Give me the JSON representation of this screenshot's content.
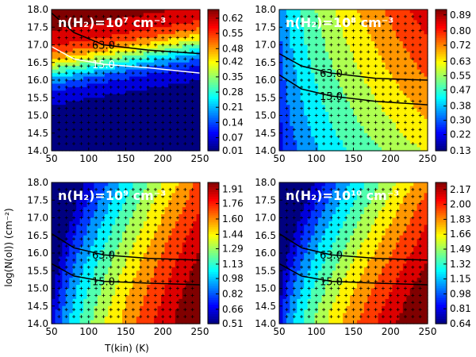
{
  "figure": {
    "ylabel": "log(N(ol)) (cm⁻²)",
    "xlabel": "T(kin) (K)"
  },
  "chart_data": [
    {
      "type": "heatmap",
      "title": "n(H₂)=10⁷ cm⁻³",
      "x": [
        50,
        100,
        150,
        200,
        250
      ],
      "y": [
        14.0,
        14.5,
        15.0,
        15.5,
        16.0,
        16.5,
        17.0,
        17.5,
        18.0
      ],
      "x_ticks": [
        "50",
        "100",
        "150",
        "200",
        "250"
      ],
      "y_ticks": [
        "14.0",
        "14.5",
        "15.0",
        "15.5",
        "16.0",
        "16.5",
        "17.0",
        "17.5",
        "18.0"
      ],
      "xlim": [
        50,
        250
      ],
      "ylim": [
        14.0,
        18.0
      ],
      "colorbar_ticks": [
        "0.01",
        "0.07",
        "0.14",
        "0.21",
        "0.28",
        "0.35",
        "0.42",
        "0.48",
        "0.55",
        "0.62"
      ],
      "colorbar_range": [
        0.01,
        0.66
      ],
      "contours": [
        {
          "label": "63.0",
          "color": "#000000",
          "points": [
            [
              50,
              17.9
            ],
            [
              80,
              17.35
            ],
            [
              120,
              17.0
            ],
            [
              180,
              16.85
            ],
            [
              250,
              16.75
            ]
          ]
        },
        {
          "label": "15.0",
          "color": "#ffffff",
          "points": [
            [
              50,
              16.95
            ],
            [
              80,
              16.6
            ],
            [
              120,
              16.45
            ],
            [
              180,
              16.35
            ],
            [
              250,
              16.2
            ]
          ]
        }
      ]
    },
    {
      "type": "heatmap",
      "title": "n(H₂)=10⁸ cm⁻³",
      "x": [
        50,
        100,
        150,
        200,
        250
      ],
      "y": [
        14.0,
        14.5,
        15.0,
        15.5,
        16.0,
        16.5,
        17.0,
        17.5,
        18.0
      ],
      "x_ticks": [
        "50",
        "100",
        "150",
        "200",
        "250"
      ],
      "y_ticks": [
        "14.0",
        "14.5",
        "15.0",
        "15.5",
        "16.0",
        "16.5",
        "17.0",
        "17.5",
        "18.0"
      ],
      "xlim": [
        50,
        250
      ],
      "ylim": [
        14.0,
        18.0
      ],
      "colorbar_ticks": [
        "0.13",
        "0.22",
        "0.30",
        "0.38",
        "0.47",
        "0.55",
        "0.63",
        "0.72",
        "0.80",
        "0.89"
      ],
      "colorbar_range": [
        0.13,
        0.92
      ],
      "contours": [
        {
          "label": "63.0",
          "color": "#000000",
          "points": [
            [
              50,
              16.75
            ],
            [
              80,
              16.4
            ],
            [
              120,
              16.2
            ],
            [
              180,
              16.05
            ],
            [
              250,
              16.0
            ]
          ]
        },
        {
          "label": "15.0",
          "color": "#000000",
          "points": [
            [
              50,
              16.15
            ],
            [
              80,
              15.75
            ],
            [
              120,
              15.55
            ],
            [
              180,
              15.4
            ],
            [
              250,
              15.3
            ]
          ]
        }
      ]
    },
    {
      "type": "heatmap",
      "title": "n(H₂)=10⁹ cm⁻³",
      "x": [
        50,
        100,
        150,
        200,
        250
      ],
      "y": [
        14.0,
        14.5,
        15.0,
        15.5,
        16.0,
        16.5,
        17.0,
        17.5,
        18.0
      ],
      "x_ticks": [
        "50",
        "100",
        "150",
        "200",
        "250"
      ],
      "y_ticks": [
        "14.0",
        "14.5",
        "15.0",
        "15.5",
        "16.0",
        "16.5",
        "17.0",
        "17.5",
        "18.0"
      ],
      "xlim": [
        50,
        250
      ],
      "ylim": [
        14.0,
        18.0
      ],
      "colorbar_ticks": [
        "0.51",
        "0.66",
        "0.82",
        "0.98",
        "1.13",
        "1.29",
        "1.44",
        "1.60",
        "1.76",
        "1.91"
      ],
      "colorbar_range": [
        0.51,
        1.98
      ],
      "contours": [
        {
          "label": "63.0",
          "color": "#000000",
          "points": [
            [
              50,
              16.55
            ],
            [
              80,
              16.15
            ],
            [
              120,
              15.95
            ],
            [
              180,
              15.85
            ],
            [
              250,
              15.8
            ]
          ]
        },
        {
          "label": "15.0",
          "color": "#000000",
          "points": [
            [
              50,
              15.7
            ],
            [
              80,
              15.35
            ],
            [
              120,
              15.2
            ],
            [
              180,
              15.15
            ],
            [
              250,
              15.1
            ]
          ]
        }
      ]
    },
    {
      "type": "heatmap",
      "title": "n(H₂)=10¹⁰ cm⁻³",
      "x": [
        50,
        100,
        150,
        200,
        250
      ],
      "y": [
        14.0,
        14.5,
        15.0,
        15.5,
        16.0,
        16.5,
        17.0,
        17.5,
        18.0
      ],
      "x_ticks": [
        "50",
        "100",
        "150",
        "200",
        "250"
      ],
      "y_ticks": [
        "14.0",
        "14.5",
        "15.0",
        "15.5",
        "16.0",
        "16.5",
        "17.0",
        "17.5",
        "18.0"
      ],
      "xlim": [
        50,
        250
      ],
      "ylim": [
        14.0,
        18.0
      ],
      "colorbar_ticks": [
        "0.64",
        "0.81",
        "0.98",
        "1.15",
        "1.32",
        "1.49",
        "1.66",
        "1.83",
        "2.00",
        "2.17"
      ],
      "colorbar_range": [
        0.64,
        2.25
      ],
      "contours": [
        {
          "label": "63.0",
          "color": "#000000",
          "points": [
            [
              50,
              16.55
            ],
            [
              80,
              16.15
            ],
            [
              120,
              15.95
            ],
            [
              180,
              15.85
            ],
            [
              250,
              15.8
            ]
          ]
        },
        {
          "label": "15.0",
          "color": "#000000",
          "points": [
            [
              50,
              15.7
            ],
            [
              80,
              15.35
            ],
            [
              120,
              15.2
            ],
            [
              180,
              15.15
            ],
            [
              250,
              15.1
            ]
          ]
        }
      ]
    }
  ]
}
